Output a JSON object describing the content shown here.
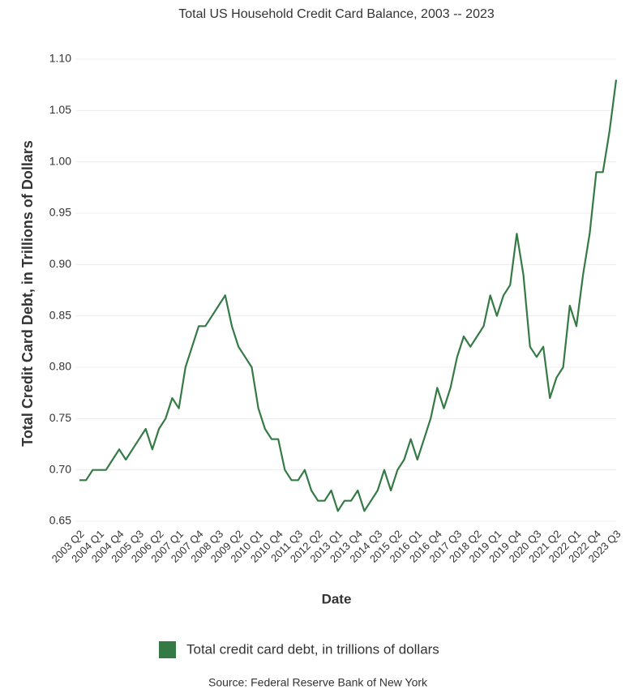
{
  "chart_data": {
    "type": "line",
    "title": "Total US Household Credit Card Balance, 2003 -- 2023",
    "x_label": "Date",
    "y_label": "Total Credit Card Debt, in Trillions of Dollars",
    "source": "Source: Federal Reserve Bank of New York",
    "categories": [
      "2003 Q2",
      null,
      null,
      "2004 Q1",
      null,
      null,
      "2004 Q4",
      null,
      null,
      "2005 Q3",
      null,
      null,
      "2006 Q2",
      null,
      null,
      "2007 Q1",
      null,
      null,
      "2007 Q4",
      null,
      null,
      "2008 Q3",
      null,
      null,
      "2009 Q2",
      null,
      null,
      "2010 Q1",
      null,
      null,
      "2010 Q4",
      null,
      null,
      "2011 Q3",
      null,
      null,
      "2012 Q2",
      null,
      null,
      "2013 Q1",
      null,
      null,
      "2013 Q4",
      null,
      null,
      "2014 Q3",
      null,
      null,
      "2015 Q2",
      null,
      null,
      "2016 Q1",
      null,
      null,
      "2016 Q4",
      null,
      null,
      "2017 Q3",
      null,
      null,
      "2018 Q2",
      null,
      null,
      "2019 Q1",
      null,
      null,
      "2019 Q4",
      null,
      null,
      "2020 Q3",
      null,
      null,
      "2021 Q2",
      null,
      null,
      "2022 Q1",
      null,
      null,
      "2022 Q4",
      null,
      null,
      "2023 Q3"
    ],
    "series": [
      {
        "name": "Total credit card debt, in trillions of dollars",
        "color": "#357a45",
        "values": [
          0.69,
          0.69,
          0.7,
          0.7,
          0.7,
          0.71,
          0.72,
          0.71,
          0.72,
          0.73,
          0.74,
          0.72,
          0.74,
          0.75,
          0.77,
          0.76,
          0.8,
          0.82,
          0.84,
          0.84,
          0.85,
          0.86,
          0.87,
          0.84,
          0.82,
          0.81,
          0.8,
          0.76,
          0.74,
          0.73,
          0.73,
          0.7,
          0.69,
          0.69,
          0.7,
          0.68,
          0.67,
          0.67,
          0.68,
          0.66,
          0.67,
          0.67,
          0.68,
          0.66,
          0.67,
          0.68,
          0.7,
          0.68,
          0.7,
          0.71,
          0.73,
          0.71,
          0.73,
          0.75,
          0.78,
          0.76,
          0.78,
          0.81,
          0.83,
          0.82,
          0.83,
          0.84,
          0.87,
          0.85,
          0.87,
          0.88,
          0.93,
          0.89,
          0.82,
          0.81,
          0.82,
          0.77,
          0.79,
          0.8,
          0.86,
          0.84,
          0.89,
          0.93,
          0.99,
          0.99,
          1.03,
          1.08
        ]
      }
    ],
    "ylim": [
      0.65,
      1.1
    ],
    "yticks": [
      0.65,
      {
        "value": 0.7,
        "label": "0.70"
      },
      0.75,
      {
        "value": 0.8,
        "label": "0.80"
      },
      0.85,
      {
        "value": 0.9,
        "label": "0.90"
      },
      0.95,
      {
        "value": 1.0,
        "label": "1.00"
      },
      1.05,
      {
        "value": 1.1,
        "label": "1.10"
      }
    ],
    "grid": true,
    "legend": "bottom"
  }
}
